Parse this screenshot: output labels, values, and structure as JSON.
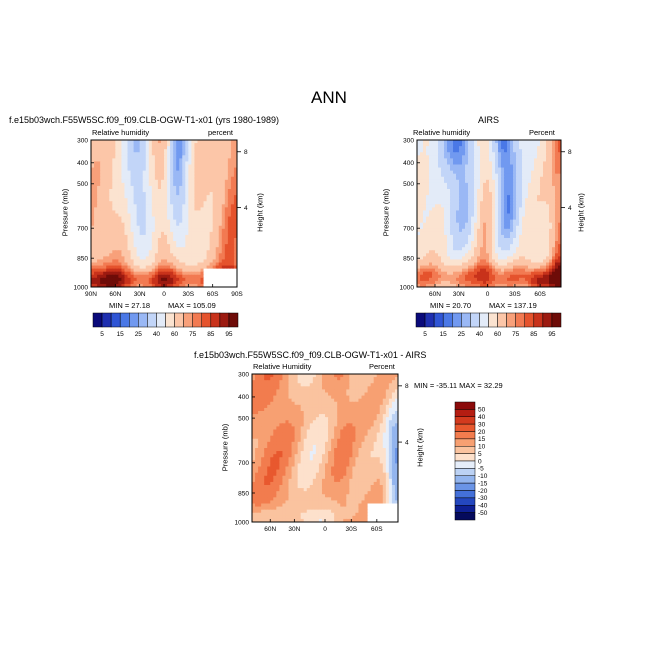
{
  "page_title": "ANN",
  "panels": {
    "model": {
      "case_title": "f.e15b03wch.F55W5SC.f09_f09.CLB-OGW-T1-x01 (yrs 1980-1989)",
      "left_label": "Relative humidity",
      "right_label": "percent",
      "ylabel": "Pressure (mb)",
      "right_axis_label": "Height (km)",
      "min_label": "MIN = 27.18",
      "max_label": "MAX = 105.09"
    },
    "obs": {
      "case_title": "AIRS",
      "left_label": "Relative humidity",
      "right_label": "Percent",
      "ylabel": "Pressure (mb)",
      "right_axis_label": "Height (km)",
      "min_label": "MIN = 20.70",
      "max_label": "MAX = 137.19"
    },
    "diff": {
      "case_title": "f.e15b03wch.F55W5SC.f09_f09.CLB-OGW-T1-x01 - AIRS",
      "left_label": "Relative Humidity",
      "right_label": "Percent",
      "ylabel": "Pressure (mb)",
      "right_axis_label": "Height (km)",
      "minmax_label": "MIN = -35.11   MAX = 32.29"
    }
  },
  "chart_data": [
    {
      "type": "heatmap",
      "title": "f.e15b03wch.F55W5SC.f09_f09.CLB-OGW-T1-x01 (yrs 1980-1989)",
      "variable": "Relative humidity",
      "units": "percent",
      "ylabel": "Pressure (mb)",
      "y2label": "Height (km)",
      "x_ticks": [
        "90N",
        "60N",
        "30N",
        "0",
        "30S",
        "60S",
        "90S"
      ],
      "y_ticks": [
        "300",
        "400",
        "500",
        "700",
        "850",
        "1000"
      ],
      "y2_ticks": [
        "8",
        "4"
      ],
      "ylim": [
        1000,
        300
      ],
      "xlim": [
        "90N",
        "90S"
      ],
      "min": 27.18,
      "max": 105.09,
      "colorbar_levels": [
        "5",
        "15",
        "25",
        "40",
        "60",
        "75",
        "85",
        "95"
      ]
    },
    {
      "type": "heatmap",
      "title": "AIRS",
      "variable": "Relative humidity",
      "units": "Percent",
      "ylabel": "Pressure (mb)",
      "y2label": "Height (km)",
      "x_ticks": [
        "60N",
        "30N",
        "0",
        "30S",
        "60S"
      ],
      "y_ticks": [
        "300",
        "400",
        "500",
        "700",
        "850",
        "1000"
      ],
      "y2_ticks": [
        "8",
        "4"
      ],
      "ylim": [
        1000,
        300
      ],
      "min": 20.7,
      "max": 137.19,
      "colorbar_levels": [
        "5",
        "15",
        "25",
        "40",
        "60",
        "75",
        "85",
        "95"
      ]
    },
    {
      "type": "heatmap",
      "title": "f.e15b03wch.F55W5SC.f09_f09.CLB-OGW-T1-x01 - AIRS",
      "variable": "Relative Humidity",
      "units": "Percent",
      "ylabel": "Pressure (mb)",
      "y2label": "Height (km)",
      "x_ticks": [
        "60N",
        "30N",
        "0",
        "30S",
        "60S"
      ],
      "y_ticks": [
        "300",
        "400",
        "500",
        "700",
        "850",
        "1000"
      ],
      "y2_ticks": [
        "8",
        "4"
      ],
      "ylim": [
        1000,
        300
      ],
      "min": -35.11,
      "max": 32.29,
      "colorbar_levels": [
        "50",
        "40",
        "30",
        "20",
        "15",
        "10",
        "5",
        "0",
        "-5",
        "-10",
        "-15",
        "-20",
        "-30",
        "-40",
        "-50"
      ]
    }
  ],
  "colors": {
    "seq": [
      "#0a0a7a",
      "#1e2fb0",
      "#2f55d5",
      "#4a78e6",
      "#7199f0",
      "#9ab8f5",
      "#c2d5f8",
      "#e3ebf8",
      "#fbe3d0",
      "#fcc6a8",
      "#f8a07a",
      "#f27a52",
      "#e5532d",
      "#c8321b",
      "#9c1a10",
      "#6e0c08"
    ],
    "diff": [
      "#8b0a0a",
      "#b51d12",
      "#d33a1e",
      "#e8582e",
      "#f27c4e",
      "#f7a072",
      "#fac39f",
      "#fde1cc",
      "#e6eefa",
      "#bcd2f4",
      "#93b5ee",
      "#6a94e6",
      "#4470d9",
      "#2447bf",
      "#0e1f93",
      "#050a5c"
    ]
  }
}
